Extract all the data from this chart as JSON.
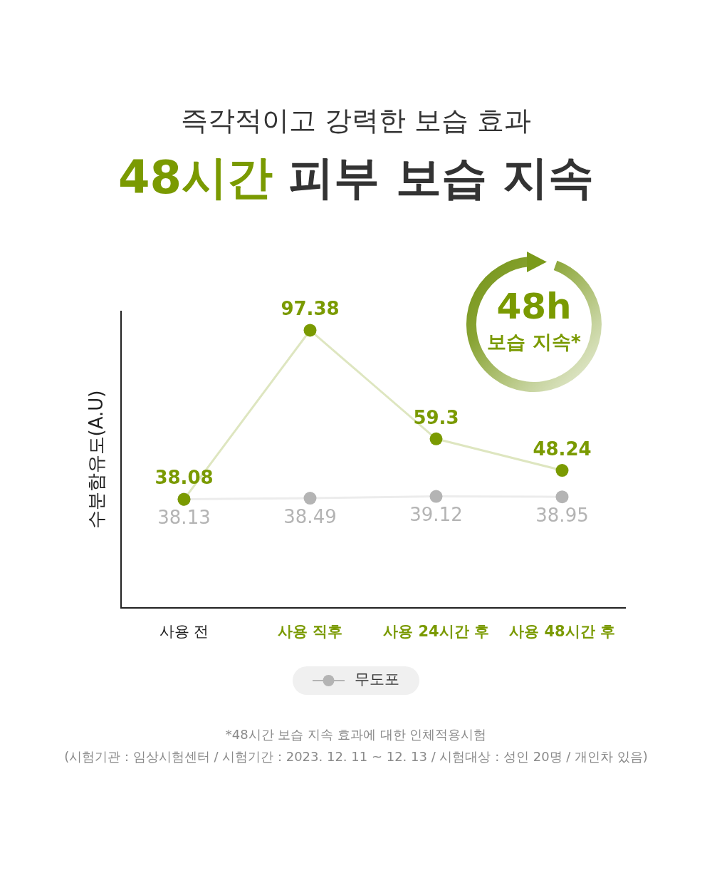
{
  "chart_data": {
    "type": "line",
    "subtitle": "즉각적이고 강력한 보습 효과",
    "title": "48시간 피부 보습 지속",
    "ylabel": "수분함유도(A.U)",
    "categories": [
      "사용 전",
      "사용 직후",
      "사용 24시간 후",
      "사용 48시간 후"
    ],
    "series": [
      {
        "name": "무도포",
        "color": "#b4b4b4",
        "values": [
          38.13,
          38.49,
          39.12,
          38.95
        ]
      },
      {
        "color": "#7a9a01",
        "values": [
          38.08,
          97.38,
          59.3,
          48.24
        ]
      }
    ],
    "ylim": [
      0,
      104
    ],
    "tick_labels": "x",
    "data_labels": true,
    "legend": "bottom",
    "marker": "circle",
    "line_style": "solid",
    "annotations": [
      "48h",
      "보습 지속*",
      "*48시간 보습 지속 효과에 대한 인체적용시험",
      "(시험기관 : 임상시험센터 / 시험기간 : 2023. 12. 11 ~ 12. 13 / 시험대상 : 성인 20명 / 개인차 있음)"
    ]
  }
}
